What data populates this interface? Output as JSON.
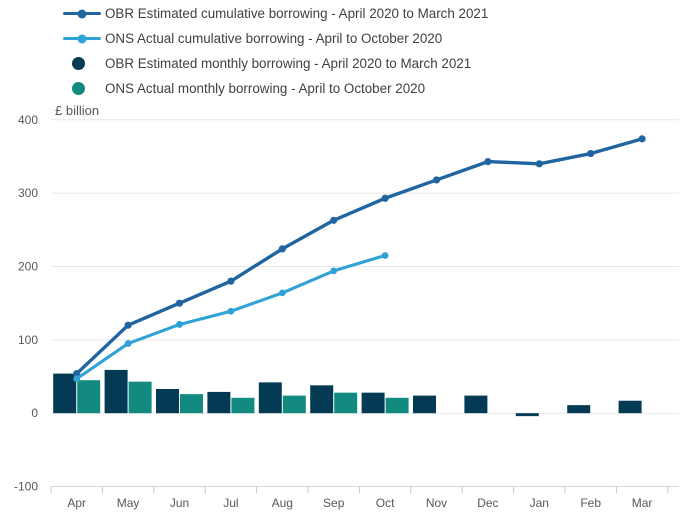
{
  "legend": {
    "items": [
      {
        "label": "OBR Estimated cumulative borrowing - April 2020 to March 2021",
        "marker": "line-dot",
        "color": "#2065a0"
      },
      {
        "label": "ONS Actual cumulative borrowing - April to October 2020",
        "marker": "line-dot",
        "color": "#2fa3d5"
      },
      {
        "label": "OBR Estimated monthly borrowing - April 2020 to March 2021",
        "marker": "circle",
        "color": "#053a55"
      },
      {
        "label": "ONS Actual monthly borrowing - April to October 2020",
        "marker": "circle",
        "color": "#128a7f"
      }
    ]
  },
  "chart_data": {
    "type": "combo-bar-line",
    "unit_label": "£ billion",
    "categories": [
      "Apr",
      "May",
      "Jun",
      "Jul",
      "Aug",
      "Sep",
      "Oct",
      "Nov",
      "Dec",
      "Jan",
      "Feb",
      "Mar"
    ],
    "y_axis": {
      "ticks": [
        400,
        300,
        200,
        100,
        0,
        -100
      ],
      "range": [
        -100,
        400
      ],
      "grid": true
    },
    "legend_position": "top-left",
    "series": [
      {
        "name": "OBR Estimated cumulative borrowing - April 2020 to March 2021",
        "type": "line",
        "color": "#2065a0",
        "values": [
          54,
          120,
          150,
          180,
          224,
          263,
          293,
          318,
          343,
          340,
          354,
          374
        ]
      },
      {
        "name": "ONS Actual cumulative borrowing - April to October 2020",
        "type": "line",
        "color": "#2fa3d5",
        "values": [
          47,
          95,
          121,
          139,
          164,
          194,
          215,
          null,
          null,
          null,
          null,
          null
        ]
      },
      {
        "name": "OBR Estimated monthly borrowing - April 2020 to March 2021",
        "type": "bar",
        "color": "#053a55",
        "values": [
          54,
          59,
          33,
          29,
          42,
          38,
          28,
          24,
          24,
          -4,
          11,
          17
        ]
      },
      {
        "name": "ONS Actual monthly borrowing - April to October 2020",
        "type": "bar",
        "color": "#128a7f",
        "values": [
          45,
          43,
          26,
          21,
          24,
          28,
          21,
          null,
          null,
          null,
          null,
          null
        ]
      }
    ],
    "colors": {
      "gridline": "#e7e7e7",
      "axis_line": "#d6d6d6",
      "tick_mark": "#c9c9c9",
      "axis_text": "#595959",
      "legend_text": "#414042",
      "background": "#ffffff"
    }
  }
}
